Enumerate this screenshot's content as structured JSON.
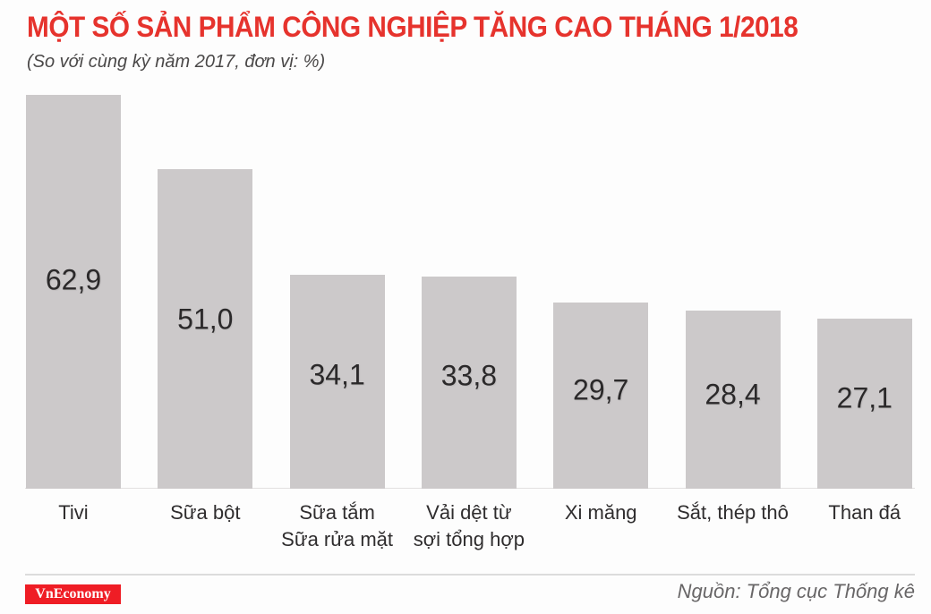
{
  "header": {
    "title": "MỘT SỐ SẢN PHẨM CÔNG NGHIỆP TĂNG CAO THÁNG 1/2018",
    "subtitle": "(So với cùng kỳ năm 2017, đơn vị: %)"
  },
  "colors": {
    "title_red": "#e6332d",
    "bar_fill": "#ccc9ca",
    "value_text": "#2b292a",
    "logo_red": "#ef1d25",
    "source_gray": "#686667"
  },
  "chart_data": {
    "type": "bar",
    "title": "MỘT SỐ SẢN PHẨM CÔNG NGHIỆP TĂNG CAO THÁNG 1/2018",
    "subtitle": "(So với cùng kỳ năm 2017, đơn vị: %)",
    "unit": "%",
    "categories": [
      "Tivi",
      "Sữa bột",
      "Sữa tắm\nSữa rửa mặt",
      "Vải dệt từ\nsợi tổng hợp",
      "Xi măng",
      "Sắt, thép thô",
      "Than đá"
    ],
    "values": [
      62.9,
      51.0,
      34.1,
      33.8,
      29.7,
      28.4,
      27.1
    ],
    "value_labels": [
      "62,9",
      "51,0",
      "34,1",
      "33,8",
      "29,7",
      "28,4",
      "27,1"
    ],
    "ylim": [
      0,
      63
    ],
    "grid": false,
    "legend": false,
    "bar_color": "#ccc9ca"
  },
  "footer": {
    "logo_text": "VnEconomy",
    "source": "Nguồn: Tổng cục Thống kê"
  }
}
